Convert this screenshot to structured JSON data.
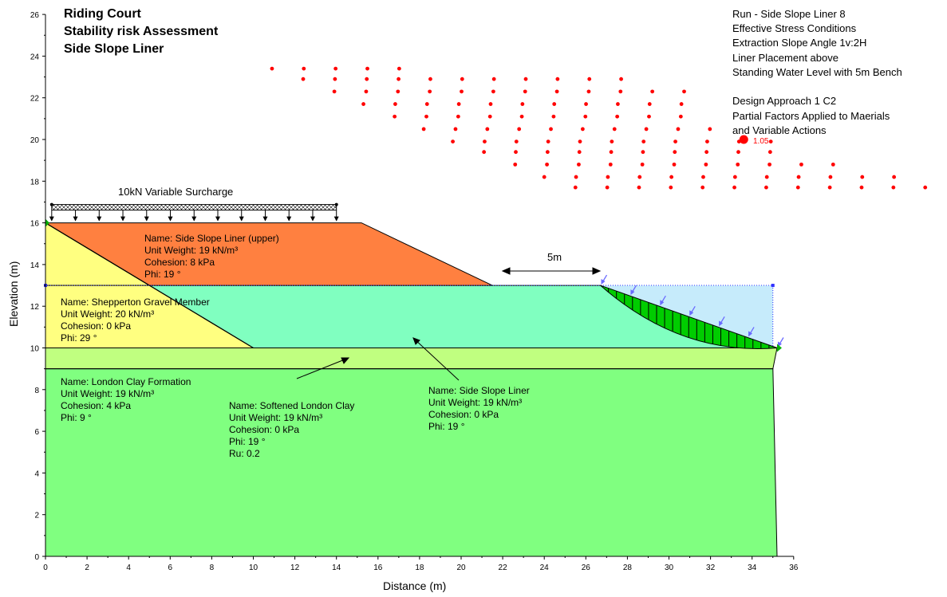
{
  "title_lines": [
    "Riding Court",
    "Stability risk Assessment",
    "Side Slope Liner"
  ],
  "run_notes": [
    "Run - Side Slope Liner 8",
    "Effective Stress Conditions",
    "Extraction Slope Angle 1v:2H",
    "Liner Placement above",
    "Standing Water Level with 5m Bench",
    "",
    "Design Approach 1 C2",
    "Partial Factors Applied to Maerials",
    "and Variable Actions"
  ],
  "axes": {
    "xlabel": "Distance (m)",
    "ylabel": "Elevation (m)",
    "xlim": [
      0,
      36
    ],
    "ylim": [
      0,
      26
    ],
    "x_ticks": [
      "0",
      "2",
      "4",
      "6",
      "8",
      "10",
      "12",
      "14",
      "16",
      "18",
      "20",
      "22",
      "24",
      "26",
      "28",
      "30",
      "32",
      "34",
      "36"
    ],
    "y_ticks": [
      "0",
      "2",
      "4",
      "6",
      "8",
      "10",
      "12",
      "14",
      "16",
      "18",
      "20",
      "22",
      "24",
      "26"
    ]
  },
  "annotations": {
    "surcharge": "10kN Variable Surcharge",
    "bench": "5m",
    "critical_fos": "1.05"
  },
  "materials": [
    {
      "lines": [
        "Name: Side Slope Liner (upper)",
        "Unit Weight: 19 kN/m³",
        "Cohesion: 8 kPa",
        "Phi: 19 °"
      ],
      "color": "#ff8040"
    },
    {
      "lines": [
        "Name: Shepperton Gravel Member",
        "Unit Weight: 20 kN/m³",
        "Cohesion: 0 kPa",
        "Phi: 29 °"
      ],
      "color": "#ffff80"
    },
    {
      "lines": [
        "Name: London Clay Formation",
        "Unit Weight: 19 kN/m³",
        "Cohesion: 4 kPa",
        "Phi: 9 °"
      ],
      "color": "#80ff80"
    },
    {
      "lines": [
        "Name: Softened London Clay",
        "Unit Weight: 19 kN/m³",
        "Cohesion: 0 kPa",
        "Phi: 19 °",
        "Ru: 0.2"
      ],
      "color": "#c0ff80"
    },
    {
      "lines": [
        "Name: Side Slope Liner",
        "Unit Weight: 19 kN/m³",
        "Cohesion: 0 kPa",
        "Phi: 19 °"
      ],
      "color": "#80ffc0"
    }
  ],
  "colors": {
    "water": "#c6ebfb",
    "slip_surface": "#00cc00",
    "grid_points": "#ff0000",
    "load_arrows": "#6a6aff"
  },
  "model": {
    "regions": {
      "london_clay": [
        [
          0,
          9
        ],
        [
          35,
          9
        ],
        [
          35.2,
          0
        ],
        [
          0,
          0
        ]
      ],
      "softened_clay": [
        [
          0,
          10
        ],
        [
          35.2,
          10
        ],
        [
          35,
          9
        ],
        [
          0,
          9
        ]
      ],
      "liner": [
        [
          0,
          13
        ],
        [
          26.7,
          13
        ],
        [
          35.2,
          10
        ],
        [
          10,
          10
        ]
      ],
      "gravel": [
        [
          0,
          16
        ],
        [
          5,
          13
        ],
        [
          0,
          13
        ]
      ],
      "gravel_lower": [
        [
          0,
          13
        ],
        [
          5,
          13
        ],
        [
          10,
          10
        ],
        [
          0,
          10
        ]
      ],
      "liner_upper": [
        [
          0,
          16
        ],
        [
          15.2,
          16
        ],
        [
          21.5,
          13
        ],
        [
          5,
          13
        ]
      ],
      "water": [
        [
          26.7,
          13
        ],
        [
          35,
          13
        ],
        [
          35,
          10
        ],
        [
          35.2,
          10
        ]
      ]
    },
    "water_level": 13,
    "surcharge_range": [
      0.3,
      14
    ],
    "surcharge_y": 16,
    "slip_circle": {
      "x1": 26.7,
      "x2": 35.2,
      "sag_to": 10
    },
    "critical_center": [
      33.6,
      20.0
    ],
    "grid_rows": [
      {
        "y": 23.4,
        "x0": 10.9,
        "n": 5
      },
      {
        "y": 22.9,
        "x0": 12.4,
        "n": 11
      },
      {
        "y": 22.3,
        "x0": 13.9,
        "n": 12
      },
      {
        "y": 21.7,
        "x0": 15.3,
        "n": 11
      },
      {
        "y": 21.1,
        "x0": 16.8,
        "n": 10
      },
      {
        "y": 20.5,
        "x0": 18.2,
        "n": 10
      },
      {
        "y": 19.9,
        "x0": 19.6,
        "n": 11
      },
      {
        "y": 19.4,
        "x0": 21.1,
        "n": 10
      },
      {
        "y": 18.8,
        "x0": 22.6,
        "n": 11
      },
      {
        "y": 18.2,
        "x0": 24.0,
        "n": 12
      },
      {
        "y": 17.7,
        "x0": 25.5,
        "n": 13
      }
    ]
  }
}
